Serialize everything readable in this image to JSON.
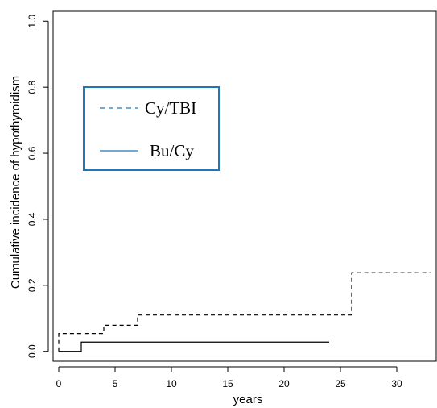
{
  "chart_data": {
    "type": "line",
    "line_style": "step",
    "title": "",
    "xlabel": "years",
    "ylabel": "Cumulative incidence of hypothyroidism",
    "xlim": [
      -0.5,
      33.5
    ],
    "ylim": [
      -0.03,
      1.03
    ],
    "x_ticks": [
      0,
      5,
      10,
      15,
      20,
      25,
      30
    ],
    "y_ticks": [
      0.0,
      0.2,
      0.4,
      0.6,
      0.8,
      1.0
    ],
    "x_tick_labels": [
      "0",
      "5",
      "10",
      "15",
      "20",
      "25",
      "30"
    ],
    "y_tick_labels": [
      "0.0",
      "0.2",
      "0.4",
      "0.6",
      "0.8",
      "1.0"
    ],
    "grid": false,
    "legend": {
      "position": "upper-left",
      "border_color": "#1f78b4",
      "text_color": "#1f78b4"
    },
    "series": [
      {
        "name": "Cy/TBI",
        "dash": "dashed",
        "color": "#000000",
        "x": [
          0,
          4,
          7,
          26,
          33
        ],
        "y": [
          0.054,
          0.079,
          0.11,
          0.238,
          0.238
        ]
      },
      {
        "name": "Bu/Cy",
        "dash": "solid",
        "color": "#000000",
        "x": [
          0,
          2,
          24
        ],
        "y": [
          0.0,
          0.028,
          0.028
        ]
      }
    ]
  }
}
